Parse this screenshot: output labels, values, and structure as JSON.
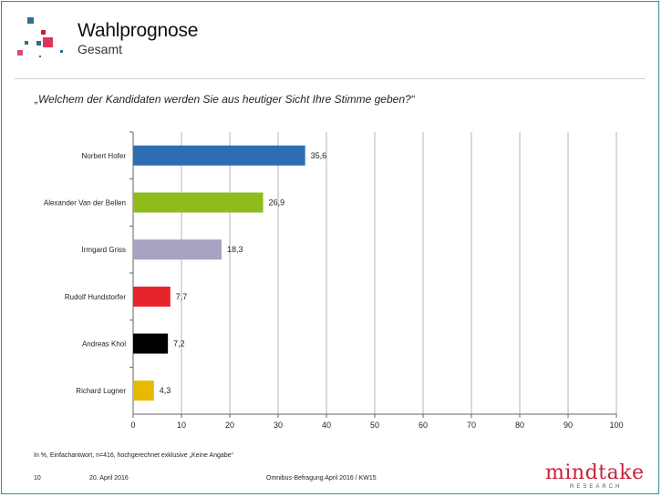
{
  "header": {
    "title": "Wahlprognose",
    "subtitle": "Gesamt",
    "question": "„Welchem der Kandidaten werden Sie aus heutiger Sicht Ihre Stimme geben?“"
  },
  "chart_data": {
    "type": "bar",
    "orientation": "horizontal",
    "categories": [
      "Norbert Hofer",
      "Alexander Van der Bellen",
      "Irmgard Griss",
      "Rudolf Hundstorfer",
      "Andreas Khol",
      "Richard Lugner"
    ],
    "values": [
      35.6,
      26.9,
      18.3,
      7.7,
      7.2,
      4.3
    ],
    "value_labels": [
      "35,6",
      "26,9",
      "18,3",
      "7,7",
      "7,2",
      "4,3"
    ],
    "colors": [
      "#2e6db4",
      "#8fbc1c",
      "#a7a3c1",
      "#e8242b",
      "#000000",
      "#e7b900"
    ],
    "xlim": [
      0,
      100
    ],
    "xticks": [
      "0",
      "10",
      "20",
      "30",
      "40",
      "50",
      "60",
      "70",
      "80",
      "90",
      "100"
    ],
    "grid": true,
    "title": "",
    "xlabel": "",
    "ylabel": ""
  },
  "footer": {
    "note": "In %, Einfachantwort, n=416, hochgerechnet exklusive „Keine Angabe“",
    "page": "10",
    "date": "20. April 2016",
    "source": "Omnibus-Befragung April 2016 / KW15",
    "brand": "mindtake",
    "brand_sub": "RESEARCH"
  }
}
